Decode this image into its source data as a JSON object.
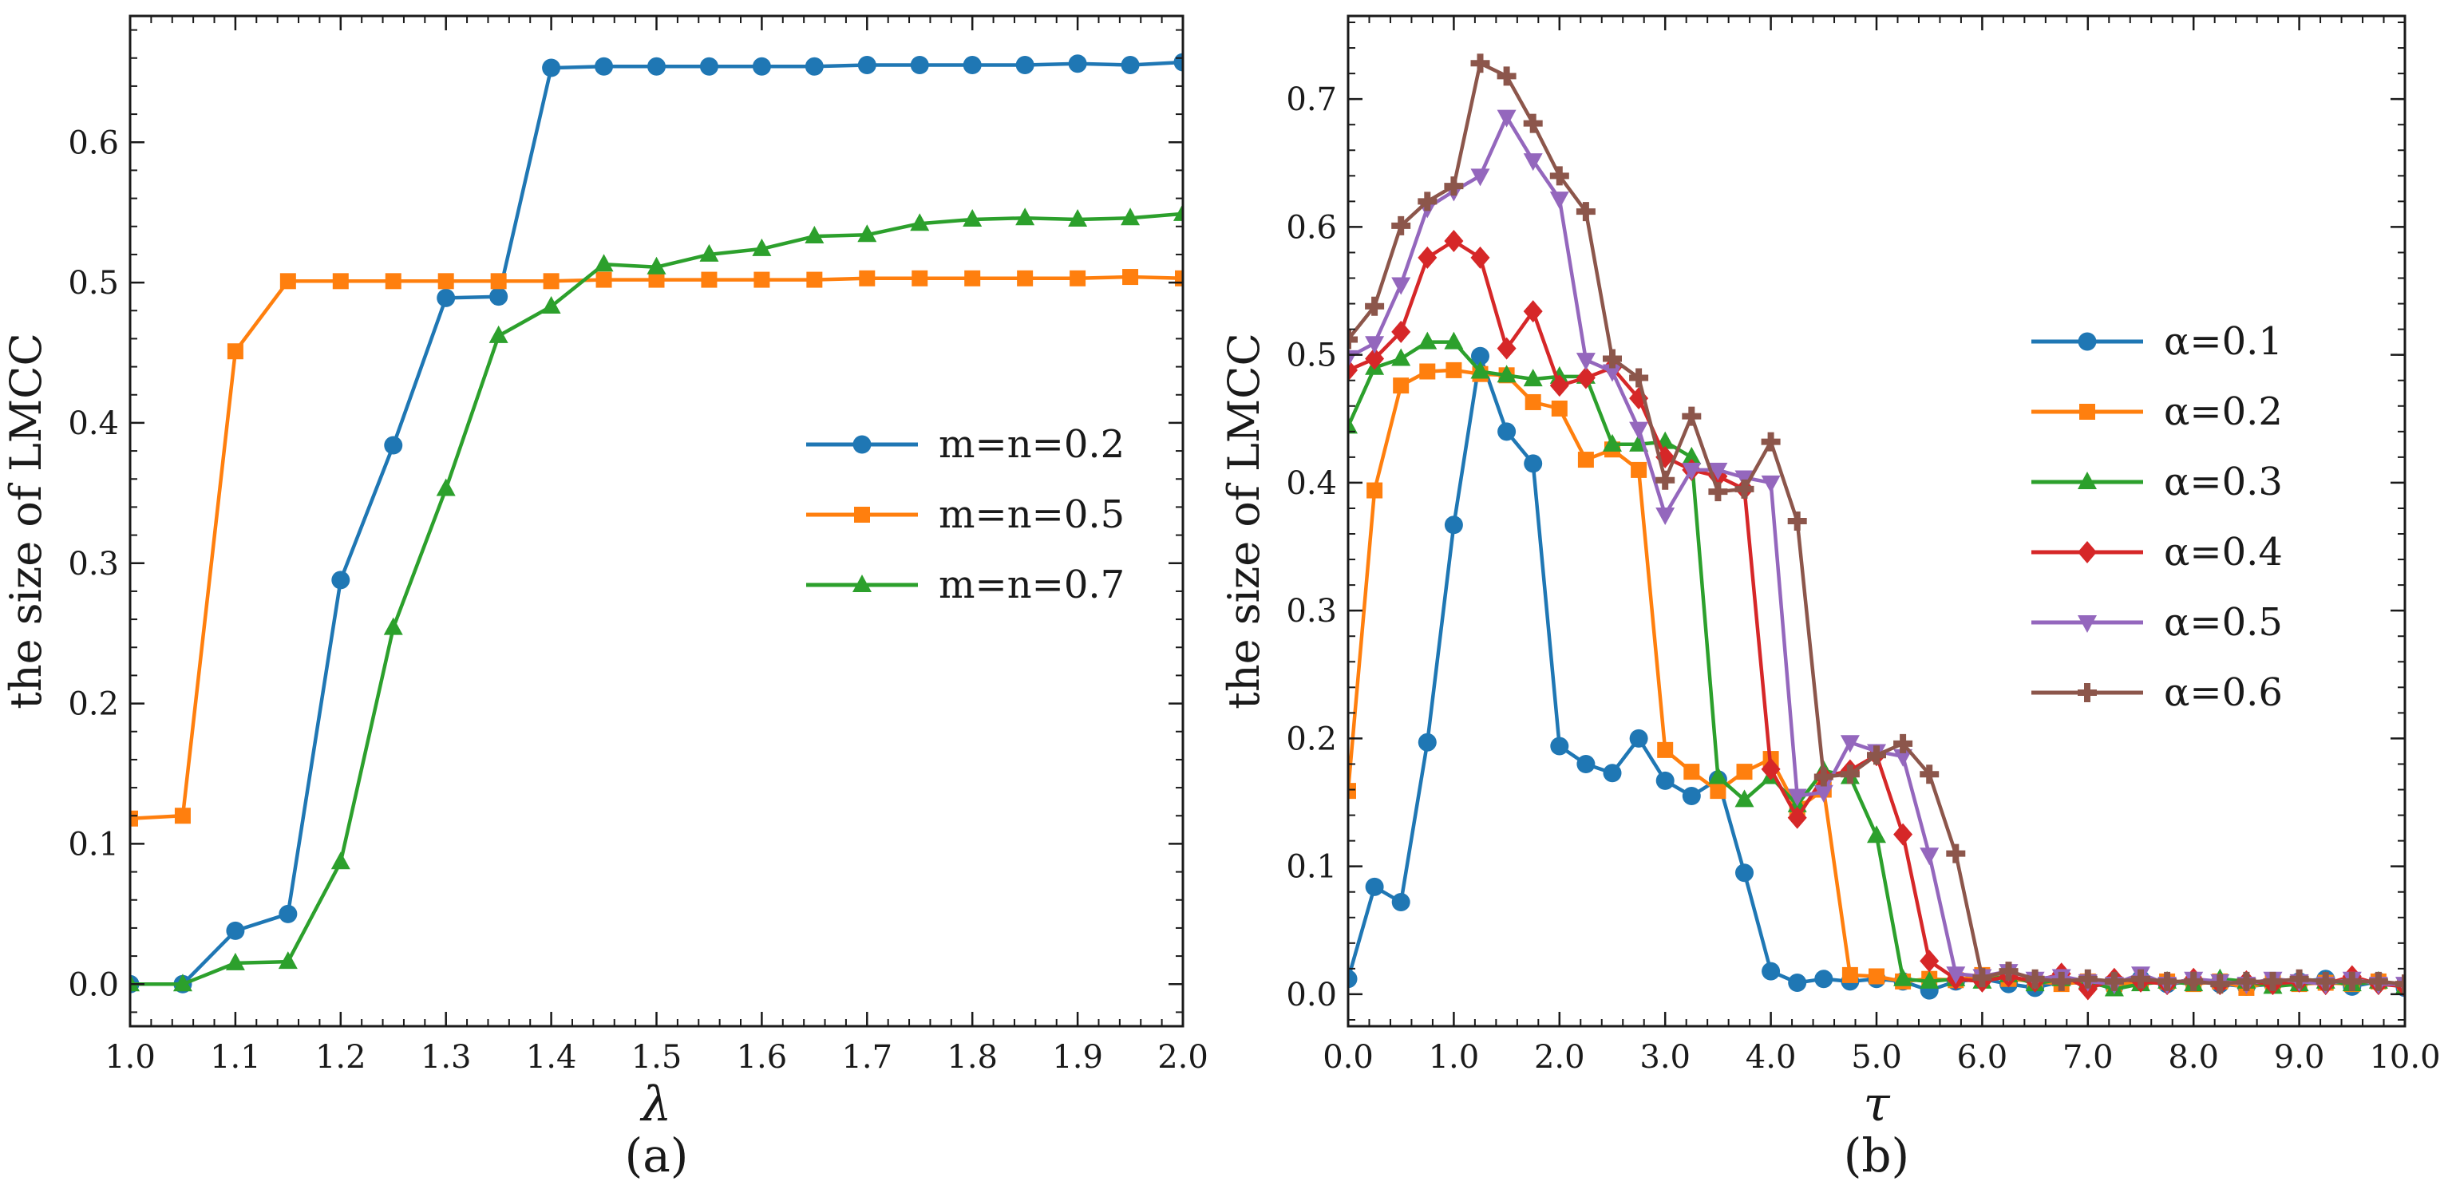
{
  "chart_data": [
    {
      "type": "line",
      "panel_label": "(a)",
      "xlabel": "λ",
      "ylabel": "the size of LMCC",
      "xlim": [
        1.0,
        2.0
      ],
      "ylim": [
        -0.03,
        0.69
      ],
      "xticks": [
        1.0,
        1.1,
        1.2,
        1.3,
        1.4,
        1.5,
        1.6,
        1.7,
        1.8,
        1.9,
        2.0
      ],
      "xtick_labels": [
        "1.0",
        "1.1",
        "1.2",
        "1.3",
        "1.4",
        "1.5",
        "1.6",
        "1.7",
        "1.8",
        "1.9",
        "2.0"
      ],
      "yticks": [
        0.0,
        0.1,
        0.2,
        0.3,
        0.4,
        0.5,
        0.6
      ],
      "ytick_labels": [
        "0.0",
        "0.1",
        "0.2",
        "0.3",
        "0.4",
        "0.5",
        "0.6"
      ],
      "legend_position": "center-right",
      "x": [
        1.0,
        1.05,
        1.1,
        1.15,
        1.2,
        1.25,
        1.3,
        1.35,
        1.4,
        1.45,
        1.5,
        1.55,
        1.6,
        1.65,
        1.7,
        1.75,
        1.8,
        1.85,
        1.9,
        1.95,
        2.0
      ],
      "series": [
        {
          "name": "m=n=0.2",
          "color": "#1f77b4",
          "marker": "circle",
          "values": [
            0.0,
            0.0,
            0.038,
            0.05,
            0.288,
            0.384,
            0.489,
            0.49,
            0.653,
            0.654,
            0.654,
            0.654,
            0.654,
            0.654,
            0.655,
            0.655,
            0.655,
            0.655,
            0.656,
            0.655,
            0.657
          ]
        },
        {
          "name": "m=n=0.5",
          "color": "#ff7f0e",
          "marker": "square",
          "values": [
            0.118,
            0.12,
            0.451,
            0.501,
            0.501,
            0.501,
            0.501,
            0.501,
            0.501,
            0.502,
            0.502,
            0.502,
            0.502,
            0.502,
            0.503,
            0.503,
            0.503,
            0.503,
            0.503,
            0.504,
            0.503
          ]
        },
        {
          "name": "m=n=0.7",
          "color": "#2ca02c",
          "marker": "triangle-up",
          "values": [
            0.0,
            0.0,
            0.015,
            0.016,
            0.087,
            0.254,
            0.353,
            0.462,
            0.483,
            0.513,
            0.511,
            0.52,
            0.524,
            0.533,
            0.534,
            0.542,
            0.545,
            0.546,
            0.545,
            0.546,
            0.549
          ]
        }
      ]
    },
    {
      "type": "line",
      "panel_label": "(b)",
      "xlabel": "τ",
      "ylabel": "the size of LMCC",
      "xlim": [
        0.0,
        10.0
      ],
      "ylim": [
        -0.025,
        0.765
      ],
      "xticks": [
        0,
        1,
        2,
        3,
        4,
        5,
        6,
        7,
        8,
        9,
        10
      ],
      "xtick_labels": [
        "0.0",
        "1.0",
        "2.0",
        "3.0",
        "4.0",
        "5.0",
        "6.0",
        "7.0",
        "8.0",
        "9.0",
        "10.0"
      ],
      "yticks": [
        0.0,
        0.1,
        0.2,
        0.3,
        0.4,
        0.5,
        0.6,
        0.7
      ],
      "ytick_labels": [
        "0.0",
        "0.1",
        "0.2",
        "0.3",
        "0.4",
        "0.5",
        "0.6",
        "0.7"
      ],
      "legend_position": "center-right",
      "x": [
        0.0,
        0.25,
        0.5,
        0.75,
        1.0,
        1.25,
        1.5,
        1.75,
        2.0,
        2.25,
        2.5,
        2.75,
        3.0,
        3.25,
        3.5,
        3.75,
        4.0,
        4.25,
        4.5,
        4.75,
        5.0,
        5.25,
        5.5,
        5.75,
        6.0,
        6.25,
        6.5,
        6.75,
        7.0,
        7.25,
        7.5,
        7.75,
        8.0,
        8.25,
        8.5,
        8.75,
        9.0,
        9.25,
        9.5,
        9.75,
        10.0
      ],
      "series": [
        {
          "name": "α=0.1",
          "color": "#1f77b4",
          "marker": "circle",
          "values": [
            0.012,
            0.084,
            0.072,
            0.197,
            0.367,
            0.499,
            0.44,
            0.415,
            0.194,
            0.18,
            0.173,
            0.2,
            0.167,
            0.155,
            0.168,
            0.095,
            0.018,
            0.009,
            0.012,
            0.01,
            0.012,
            0.01,
            0.003,
            0.01,
            0.012,
            0.008,
            0.005,
            0.01,
            0.008,
            0.006,
            0.012,
            0.008,
            0.01,
            0.008,
            0.006,
            0.008,
            0.01,
            0.012,
            0.006,
            0.01,
            0.005
          ]
        },
        {
          "name": "α=0.2",
          "color": "#ff7f0e",
          "marker": "square",
          "values": [
            0.159,
            0.394,
            0.476,
            0.487,
            0.488,
            0.485,
            0.484,
            0.463,
            0.458,
            0.418,
            0.426,
            0.41,
            0.191,
            0.174,
            0.159,
            0.174,
            0.184,
            0.145,
            0.16,
            0.015,
            0.014,
            0.01,
            0.012,
            0.011,
            0.015,
            0.012,
            0.01,
            0.008,
            0.01,
            0.008,
            0.009,
            0.01,
            0.008,
            0.01,
            0.005,
            0.01,
            0.008,
            0.009,
            0.008,
            0.01,
            0.006
          ]
        },
        {
          "name": "α=0.3",
          "color": "#2ca02c",
          "marker": "triangle-up",
          "values": [
            0.444,
            0.49,
            0.497,
            0.51,
            0.51,
            0.487,
            0.484,
            0.481,
            0.483,
            0.483,
            0.43,
            0.43,
            0.432,
            0.42,
            0.17,
            0.152,
            0.17,
            0.148,
            0.175,
            0.17,
            0.124,
            0.012,
            0.01,
            0.012,
            0.01,
            0.015,
            0.008,
            0.012,
            0.01,
            0.004,
            0.008,
            0.01,
            0.008,
            0.012,
            0.01,
            0.006,
            0.008,
            0.01,
            0.008,
            0.01,
            0.006
          ]
        },
        {
          "name": "α=0.4",
          "color": "#d62728",
          "marker": "diamond",
          "values": [
            0.488,
            0.497,
            0.518,
            0.576,
            0.589,
            0.576,
            0.505,
            0.534,
            0.476,
            0.482,
            0.49,
            0.466,
            0.42,
            0.41,
            0.405,
            0.395,
            0.176,
            0.138,
            0.17,
            0.175,
            0.187,
            0.125,
            0.026,
            0.012,
            0.01,
            0.014,
            0.01,
            0.016,
            0.004,
            0.012,
            0.01,
            0.008,
            0.012,
            0.008,
            0.01,
            0.008,
            0.01,
            0.008,
            0.014,
            0.008,
            0.006
          ]
        },
        {
          "name": "α=0.5",
          "color": "#9467bd",
          "marker": "triangle-down",
          "values": [
            0.498,
            0.509,
            0.555,
            0.615,
            0.628,
            0.64,
            0.686,
            0.652,
            0.622,
            0.496,
            0.487,
            0.442,
            0.375,
            0.41,
            0.41,
            0.404,
            0.4,
            0.155,
            0.158,
            0.197,
            0.19,
            0.186,
            0.109,
            0.016,
            0.014,
            0.018,
            0.012,
            0.014,
            0.01,
            0.008,
            0.016,
            0.008,
            0.012,
            0.01,
            0.008,
            0.012,
            0.01,
            0.008,
            0.012,
            0.008,
            0.008
          ]
        },
        {
          "name": "α=0.6",
          "color": "#8c564b",
          "marker": "plus",
          "values": [
            0.512,
            0.538,
            0.601,
            0.62,
            0.632,
            0.728,
            0.718,
            0.681,
            0.64,
            0.612,
            0.497,
            0.482,
            0.402,
            0.452,
            0.393,
            0.395,
            0.432,
            0.37,
            0.17,
            0.172,
            0.187,
            0.196,
            0.172,
            0.11,
            0.013,
            0.018,
            0.012,
            0.01,
            0.012,
            0.01,
            0.012,
            0.01,
            0.01,
            0.008,
            0.01,
            0.01,
            0.012,
            0.01,
            0.01,
            0.01,
            0.008
          ]
        }
      ]
    }
  ]
}
